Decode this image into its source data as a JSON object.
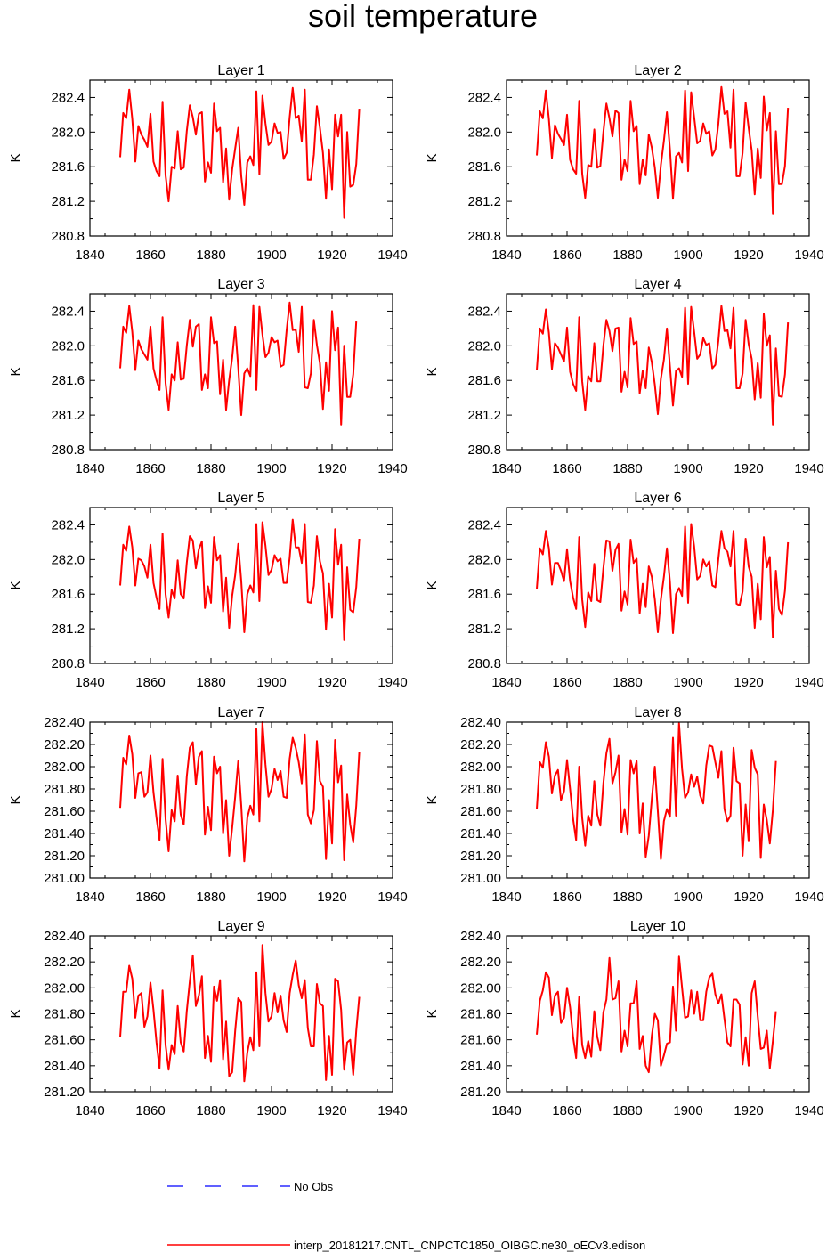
{
  "title": "soil temperature",
  "legend": {
    "no_obs_label": "No Obs",
    "no_obs_color": "#0000ff",
    "model_label": "interp_20181217.CNTL_CNPCTC1850_OIBGC.ne30_oECv3.edison",
    "model_color": "#ff0000"
  },
  "chart_data": [
    {
      "type": "line",
      "title": "Layer 1",
      "ylabel": "K",
      "xlim": [
        1840,
        1940
      ],
      "xticks": [
        1840,
        1860,
        1880,
        1900,
        1920,
        1940
      ],
      "ylim": [
        280.8,
        282.6
      ],
      "yticks": [
        "280.8",
        "281.2",
        "281.6",
        "282.0",
        "282.4"
      ],
      "x_start": 1850,
      "values": [
        281.71,
        282.22,
        282.16,
        282.49,
        282.15,
        281.66,
        282.07,
        281.97,
        281.91,
        281.83,
        282.21,
        281.66,
        281.55,
        281.49,
        282.35,
        281.5,
        281.2,
        281.6,
        281.58,
        282.01,
        281.57,
        281.59,
        282.01,
        282.31,
        282.17,
        281.97,
        282.21,
        282.23,
        281.43,
        281.65,
        281.53,
        282.33,
        282.01,
        282.05,
        281.42,
        281.81,
        281.22,
        281.57,
        281.81,
        282.05,
        281.49,
        281.16,
        281.65,
        281.72,
        281.62,
        282.47,
        281.51,
        282.42,
        282.1,
        281.85,
        281.89,
        282.1,
        281.99,
        282.0,
        281.69,
        281.76,
        282.17,
        282.51,
        282.16,
        282.19,
        281.89,
        282.49,
        281.45,
        281.45,
        281.74,
        282.3,
        282.05,
        281.76,
        281.23,
        281.8,
        281.34,
        282.2,
        281.95,
        282.2,
        281.01,
        282.0,
        281.37,
        281.39,
        281.63,
        282.27
      ]
    },
    {
      "type": "line",
      "title": "Layer 2",
      "ylabel": "K",
      "xlim": [
        1840,
        1940
      ],
      "xticks": [
        1840,
        1860,
        1880,
        1900,
        1920,
        1940
      ],
      "ylim": [
        280.8,
        282.6
      ],
      "yticks": [
        "280.8",
        "281.2",
        "281.6",
        "282.0",
        "282.4"
      ],
      "x_start": 1850,
      "values": [
        281.73,
        282.24,
        282.16,
        282.48,
        282.15,
        281.7,
        282.08,
        281.98,
        281.92,
        281.85,
        282.2,
        281.68,
        281.57,
        281.52,
        282.36,
        281.52,
        281.24,
        281.62,
        281.6,
        282.03,
        281.59,
        281.61,
        282.0,
        282.33,
        282.16,
        281.95,
        282.25,
        282.22,
        281.45,
        281.68,
        281.55,
        282.36,
        282.01,
        282.07,
        281.4,
        281.68,
        281.5,
        281.97,
        281.82,
        281.59,
        281.24,
        281.62,
        281.9,
        282.23,
        281.8,
        281.23,
        281.72,
        281.76,
        281.65,
        282.48,
        281.55,
        282.46,
        282.17,
        281.87,
        281.9,
        282.1,
        281.98,
        282.01,
        281.73,
        281.8,
        282.1,
        282.52,
        282.21,
        282.24,
        281.82,
        282.49,
        281.49,
        281.49,
        281.76,
        282.34,
        282.05,
        281.79,
        281.28,
        281.81,
        281.47,
        282.41,
        282.02,
        282.22,
        281.06,
        282.01,
        281.4,
        281.4,
        281.61,
        282.28
      ]
    },
    {
      "type": "line",
      "title": "Layer 3",
      "ylabel": "K",
      "xlim": [
        1840,
        1940
      ],
      "xticks": [
        1840,
        1860,
        1880,
        1900,
        1920,
        1940
      ],
      "ylim": [
        280.8,
        282.6
      ],
      "yticks": [
        "280.8",
        "281.2",
        "281.6",
        "282.0",
        "282.4"
      ],
      "x_start": 1850,
      "values": [
        281.74,
        282.22,
        282.15,
        282.46,
        282.16,
        281.72,
        282.06,
        281.96,
        281.9,
        281.84,
        282.22,
        281.74,
        281.6,
        281.49,
        282.33,
        281.57,
        281.26,
        281.67,
        281.6,
        282.04,
        281.61,
        281.62,
        282.0,
        282.3,
        281.99,
        282.22,
        282.25,
        281.49,
        281.67,
        281.51,
        282.33,
        282.03,
        282.05,
        281.44,
        281.84,
        281.26,
        281.6,
        281.86,
        282.22,
        281.75,
        281.2,
        281.68,
        281.74,
        281.65,
        282.47,
        281.49,
        282.45,
        282.13,
        281.87,
        281.92,
        282.1,
        282.04,
        282.06,
        281.76,
        281.78,
        282.18,
        282.5,
        282.18,
        282.19,
        281.93,
        282.45,
        281.52,
        281.51,
        281.68,
        282.3,
        282.01,
        281.8,
        281.27,
        281.81,
        281.48,
        282.4,
        281.95,
        282.21,
        281.09,
        282.0,
        281.41,
        281.41,
        281.67,
        282.28
      ]
    },
    {
      "type": "line",
      "title": "Layer 4",
      "ylabel": "K",
      "xlim": [
        1840,
        1940
      ],
      "xticks": [
        1840,
        1860,
        1880,
        1900,
        1920,
        1940
      ],
      "ylim": [
        280.8,
        282.6
      ],
      "yticks": [
        "280.8",
        "281.2",
        "281.6",
        "282.0",
        "282.4"
      ],
      "x_start": 1850,
      "values": [
        281.72,
        282.2,
        282.14,
        282.42,
        282.15,
        281.73,
        282.03,
        281.98,
        281.9,
        281.82,
        282.21,
        281.7,
        281.56,
        281.48,
        282.33,
        281.59,
        281.26,
        281.65,
        281.59,
        282.03,
        281.59,
        281.59,
        282.0,
        282.3,
        282.17,
        281.94,
        282.2,
        282.21,
        281.47,
        281.7,
        281.52,
        282.32,
        282.02,
        282.05,
        281.45,
        281.71,
        281.51,
        281.98,
        281.81,
        281.55,
        281.21,
        281.62,
        281.84,
        282.2,
        281.76,
        281.31,
        281.71,
        281.74,
        281.64,
        282.44,
        281.56,
        282.45,
        282.16,
        281.85,
        281.9,
        282.09,
        282.01,
        282.03,
        281.74,
        281.78,
        282.06,
        282.46,
        282.17,
        282.18,
        281.97,
        282.44,
        281.51,
        281.51,
        281.68,
        282.3,
        282.02,
        281.85,
        281.38,
        281.8,
        281.4,
        282.37,
        282.0,
        282.12,
        281.09,
        281.97,
        281.42,
        281.41,
        281.67,
        282.27
      ]
    },
    {
      "type": "line",
      "title": "Layer 5",
      "ylabel": "K",
      "xlim": [
        1840,
        1940
      ],
      "xticks": [
        1840,
        1860,
        1880,
        1900,
        1920,
        1940
      ],
      "ylim": [
        280.8,
        282.6
      ],
      "yticks": [
        "280.8",
        "281.2",
        "281.6",
        "282.0",
        "282.4"
      ],
      "x_start": 1850,
      "values": [
        281.7,
        282.17,
        282.1,
        282.38,
        282.14,
        281.7,
        282.01,
        281.99,
        281.92,
        281.79,
        282.17,
        281.73,
        281.56,
        281.43,
        282.3,
        281.6,
        281.33,
        281.65,
        281.55,
        281.99,
        281.6,
        281.55,
        281.96,
        282.27,
        282.22,
        281.9,
        282.12,
        282.21,
        281.44,
        281.69,
        281.5,
        282.26,
        281.99,
        282.05,
        281.4,
        281.79,
        281.21,
        281.58,
        281.82,
        282.18,
        281.75,
        281.16,
        281.6,
        281.7,
        281.62,
        282.41,
        281.52,
        282.43,
        282.16,
        281.82,
        281.88,
        282.05,
        281.98,
        282.01,
        281.73,
        281.73,
        282.02,
        282.46,
        282.14,
        282.14,
        281.96,
        282.41,
        281.51,
        281.5,
        281.7,
        282.27,
        281.98,
        281.84,
        281.19,
        281.72,
        281.33,
        282.35,
        281.94,
        282.17,
        281.07,
        281.91,
        281.42,
        281.39,
        281.68,
        282.24
      ]
    },
    {
      "type": "line",
      "title": "Layer 6",
      "ylabel": "K",
      "xlim": [
        1840,
        1940
      ],
      "xticks": [
        1840,
        1860,
        1880,
        1900,
        1920,
        1940
      ],
      "ylim": [
        280.8,
        282.6
      ],
      "yticks": [
        "280.8",
        "281.2",
        "281.6",
        "282.0",
        "282.4"
      ],
      "x_start": 1850,
      "values": [
        281.66,
        282.13,
        282.06,
        282.33,
        282.13,
        281.71,
        281.96,
        281.96,
        281.87,
        281.75,
        282.12,
        281.75,
        281.56,
        281.43,
        282.26,
        281.54,
        281.22,
        281.62,
        281.52,
        281.95,
        281.53,
        281.51,
        281.9,
        282.22,
        282.21,
        281.87,
        282.11,
        282.18,
        281.41,
        281.63,
        281.48,
        282.23,
        281.96,
        282.01,
        281.38,
        281.72,
        281.45,
        281.92,
        281.8,
        281.54,
        281.16,
        281.54,
        281.8,
        282.13,
        281.74,
        281.15,
        281.6,
        281.67,
        281.58,
        282.38,
        281.5,
        282.41,
        282.15,
        281.77,
        281.81,
        282.0,
        281.92,
        281.98,
        281.7,
        281.68,
        282.01,
        282.33,
        282.13,
        282.09,
        281.92,
        282.33,
        281.49,
        281.47,
        281.63,
        282.24,
        281.92,
        281.8,
        281.21,
        281.72,
        281.31,
        282.26,
        281.91,
        282.03,
        281.1,
        281.87,
        281.43,
        281.36,
        281.64,
        282.2
      ]
    },
    {
      "type": "line",
      "title": "Layer 7",
      "ylabel": "K",
      "xlim": [
        1840,
        1940
      ],
      "xticks": [
        1840,
        1860,
        1880,
        1900,
        1920,
        1940
      ],
      "ylim": [
        281.0,
        282.4
      ],
      "yticks": [
        "281.00",
        "281.20",
        "281.40",
        "281.60",
        "281.80",
        "282.00",
        "282.20",
        "282.40"
      ],
      "x_start": 1850,
      "values": [
        281.63,
        282.08,
        282.02,
        282.28,
        282.11,
        281.72,
        281.94,
        281.95,
        281.73,
        281.77,
        282.1,
        281.77,
        281.54,
        281.34,
        282.07,
        281.53,
        281.24,
        281.61,
        281.51,
        281.92,
        281.57,
        281.48,
        281.91,
        282.17,
        282.22,
        281.84,
        282.09,
        282.14,
        281.39,
        281.64,
        281.43,
        282.09,
        281.94,
        282.0,
        281.4,
        281.7,
        281.2,
        281.45,
        281.73,
        282.05,
        281.65,
        281.15,
        281.54,
        281.65,
        281.57,
        282.34,
        281.51,
        282.4,
        282.02,
        281.73,
        281.8,
        281.98,
        281.88,
        281.96,
        281.73,
        281.72,
        282.07,
        282.26,
        282.17,
        282.04,
        281.85,
        282.29,
        281.57,
        281.49,
        281.61,
        282.23,
        281.87,
        281.82,
        281.17,
        281.7,
        281.31,
        282.24,
        281.86,
        282.01,
        281.16,
        281.75,
        281.48,
        281.32,
        281.65,
        282.13
      ]
    },
    {
      "type": "line",
      "title": "Layer 8",
      "ylabel": "K",
      "xlim": [
        1840,
        1940
      ],
      "xticks": [
        1840,
        1860,
        1880,
        1900,
        1920,
        1940
      ],
      "ylim": [
        281.0,
        282.4
      ],
      "yticks": [
        "281.00",
        "281.20",
        "281.40",
        "281.60",
        "281.80",
        "282.00",
        "282.20",
        "282.40"
      ],
      "x_start": 1850,
      "values": [
        281.62,
        282.04,
        281.99,
        282.22,
        282.09,
        281.76,
        281.92,
        281.97,
        281.7,
        281.78,
        282.06,
        281.8,
        281.53,
        281.34,
        282.0,
        281.54,
        281.29,
        281.56,
        281.47,
        281.87,
        281.57,
        281.47,
        281.85,
        282.12,
        282.25,
        281.85,
        281.95,
        282.1,
        281.41,
        281.62,
        281.39,
        282.06,
        281.94,
        282.05,
        281.4,
        281.67,
        281.19,
        281.38,
        281.71,
        282.0,
        281.6,
        281.17,
        281.51,
        281.62,
        281.55,
        282.26,
        281.56,
        282.39,
        281.98,
        281.72,
        281.77,
        281.93,
        281.82,
        281.91,
        281.74,
        281.67,
        282.01,
        282.19,
        282.18,
        282.04,
        281.9,
        282.14,
        281.62,
        281.51,
        281.56,
        282.17,
        281.87,
        281.85,
        281.2,
        281.66,
        281.33,
        282.15,
        281.99,
        281.93,
        281.18,
        281.66,
        281.52,
        281.31,
        281.61,
        282.05
      ]
    },
    {
      "type": "line",
      "title": "Layer 9",
      "ylabel": "K",
      "xlim": [
        1840,
        1940
      ],
      "xticks": [
        1840,
        1860,
        1880,
        1900,
        1920,
        1940
      ],
      "ylim": [
        281.2,
        282.4
      ],
      "yticks": [
        "281.20",
        "281.40",
        "281.60",
        "281.80",
        "282.00",
        "282.20",
        "282.40"
      ],
      "x_start": 1850,
      "values": [
        281.62,
        281.97,
        281.97,
        282.17,
        282.07,
        281.77,
        281.94,
        281.96,
        281.7,
        281.78,
        282.04,
        281.83,
        281.58,
        281.38,
        281.98,
        281.56,
        281.37,
        281.56,
        281.49,
        281.86,
        281.58,
        281.51,
        281.82,
        282.05,
        282.25,
        281.86,
        281.94,
        282.09,
        281.46,
        281.63,
        281.43,
        282.01,
        281.9,
        282.06,
        281.45,
        281.74,
        281.32,
        281.35,
        281.67,
        281.92,
        281.89,
        281.28,
        281.5,
        281.62,
        281.52,
        282.12,
        281.55,
        282.33,
        281.96,
        281.74,
        281.78,
        281.96,
        281.81,
        281.94,
        281.75,
        281.66,
        281.96,
        282.1,
        282.21,
        282.02,
        281.92,
        282.06,
        281.69,
        281.55,
        281.55,
        282.03,
        281.88,
        281.86,
        281.29,
        281.63,
        281.33,
        282.07,
        282.05,
        281.83,
        281.37,
        281.58,
        281.6,
        281.33,
        281.67,
        281.93
      ]
    },
    {
      "type": "line",
      "title": "Layer 10",
      "ylabel": "K",
      "xlim": [
        1840,
        1940
      ],
      "xticks": [
        1840,
        1860,
        1880,
        1900,
        1920,
        1940
      ],
      "ylim": [
        281.2,
        282.4
      ],
      "yticks": [
        "281.20",
        "281.40",
        "281.60",
        "281.80",
        "282.00",
        "282.20",
        "282.40"
      ],
      "x_start": 1850,
      "values": [
        281.64,
        281.9,
        281.98,
        282.12,
        282.08,
        281.79,
        281.94,
        281.97,
        281.73,
        281.77,
        282.0,
        281.85,
        281.62,
        281.46,
        281.93,
        281.56,
        281.46,
        281.59,
        281.47,
        281.82,
        281.62,
        281.52,
        281.81,
        281.91,
        282.23,
        281.91,
        281.92,
        282.05,
        281.51,
        281.67,
        281.55,
        281.88,
        281.88,
        282.05,
        281.53,
        281.63,
        281.4,
        281.35,
        281.63,
        281.8,
        281.75,
        281.4,
        281.48,
        281.57,
        281.58,
        282.01,
        281.67,
        282.24,
        282.0,
        281.77,
        281.78,
        281.98,
        281.8,
        281.97,
        281.75,
        281.75,
        281.97,
        282.08,
        282.11,
        281.95,
        281.88,
        281.95,
        281.76,
        281.58,
        281.55,
        281.91,
        281.91,
        281.87,
        281.41,
        281.62,
        281.4,
        281.96,
        282.05,
        281.78,
        281.53,
        281.54,
        281.67,
        281.38,
        281.59,
        281.82
      ]
    }
  ]
}
